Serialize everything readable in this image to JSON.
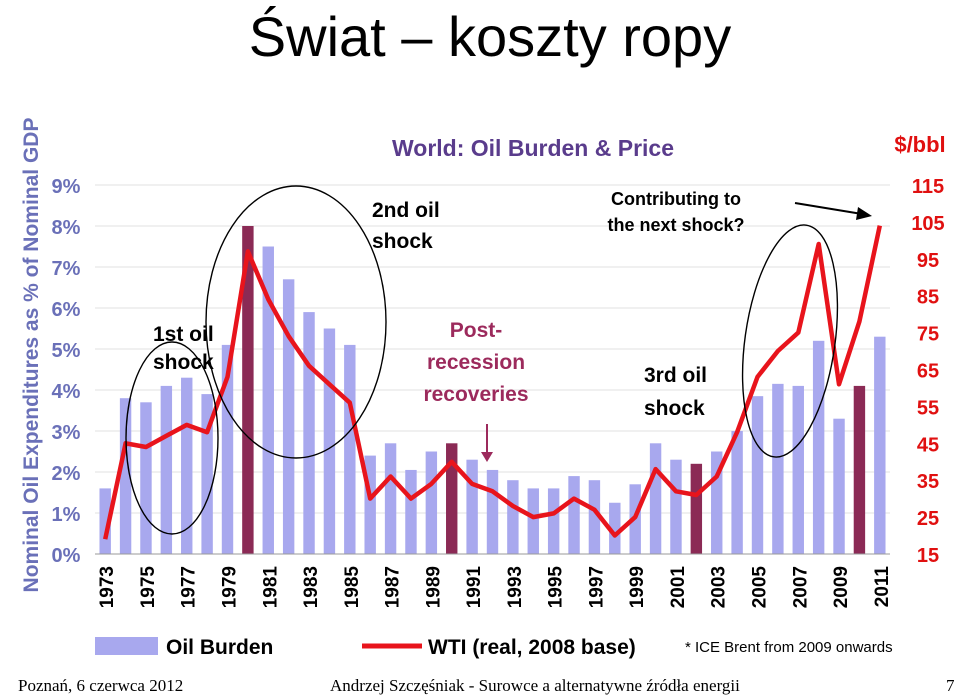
{
  "slide": {
    "title": "Świat – koszty ropy",
    "footer_left": "Poznań, 6 czerwca  2012",
    "footer_center": "Andrzej Szczęśniak -  Surowce a alternatywne źródła energii",
    "page_number": "7"
  },
  "chart_data": {
    "type": "bar+line",
    "title": "World: Oil Burden & Price",
    "ylabel_left": "Nominal Oil Expenditures as % of Nominal GDP",
    "ylabel_right": "$/bbl",
    "years": [
      1973,
      1974,
      1975,
      1976,
      1977,
      1978,
      1979,
      1980,
      1981,
      1982,
      1983,
      1984,
      1985,
      1986,
      1987,
      1988,
      1989,
      1990,
      1991,
      1992,
      1993,
      1994,
      1995,
      1996,
      1997,
      1998,
      1999,
      2000,
      2001,
      2002,
      2003,
      2004,
      2005,
      2006,
      2007,
      2008,
      2009,
      2010,
      2011
    ],
    "x_tick_labels": [
      "1973",
      "1975",
      "1977",
      "1979",
      "1981",
      "1983",
      "1985",
      "1987",
      "1989",
      "1991",
      "1993",
      "1995",
      "1997",
      "1999",
      "2001",
      "2003",
      "2005",
      "2007",
      "2009",
      "2011"
    ],
    "y_left_ticks": [
      "0%",
      "1%",
      "2%",
      "3%",
      "4%",
      "5%",
      "6%",
      "7%",
      "8%",
      "9%"
    ],
    "y_left_lim": [
      0,
      9
    ],
    "y_right_ticks": [
      "15",
      "25",
      "35",
      "45",
      "55",
      "65",
      "75",
      "85",
      "95",
      "105",
      "115"
    ],
    "y_right_lim": [
      15,
      115
    ],
    "series": [
      {
        "name": "Oil Burden",
        "kind": "bar",
        "color": "#a8a8ee",
        "highlight_color": "#8b2a55",
        "highlight_years": [
          1980,
          1990,
          2002,
          2010
        ],
        "values": [
          1.6,
          3.8,
          3.7,
          4.1,
          4.3,
          3.9,
          5.1,
          8.0,
          7.5,
          6.7,
          5.9,
          5.5,
          5.1,
          2.4,
          2.7,
          2.05,
          2.5,
          2.7,
          2.3,
          2.05,
          1.8,
          1.6,
          1.6,
          1.9,
          1.8,
          1.25,
          1.7,
          2.7,
          2.3,
          2.2,
          2.5,
          3.0,
          3.85,
          4.15,
          4.1,
          5.2,
          3.3,
          4.1,
          5.3
        ]
      },
      {
        "name": "WTI (real, 2008 base)",
        "kind": "line",
        "color": "#e8141c",
        "values": [
          19,
          45,
          44,
          47,
          50,
          48,
          63,
          97,
          84,
          74,
          66,
          61,
          56,
          30,
          36,
          30,
          34,
          40,
          34,
          32,
          28,
          25,
          26,
          30,
          27,
          20,
          25,
          38,
          32,
          31,
          36,
          48,
          63,
          70,
          75,
          99,
          61,
          78,
          104
        ]
      }
    ],
    "footnote": "* ICE Brent from 2009 onwards",
    "annotations": {
      "shock1": "1st oil shock",
      "shock2": "2nd oil shock",
      "recovery": "Post- recession recoveries",
      "shock3": "3rd oil shock",
      "next": "Contributing to the next shock?"
    },
    "colors": {
      "title": "#5a3c8c",
      "burden_axis": "#6a70b8",
      "price_axis": "#e01010",
      "annotation": "#000000",
      "recovery_text": "#9c2a5c"
    }
  }
}
